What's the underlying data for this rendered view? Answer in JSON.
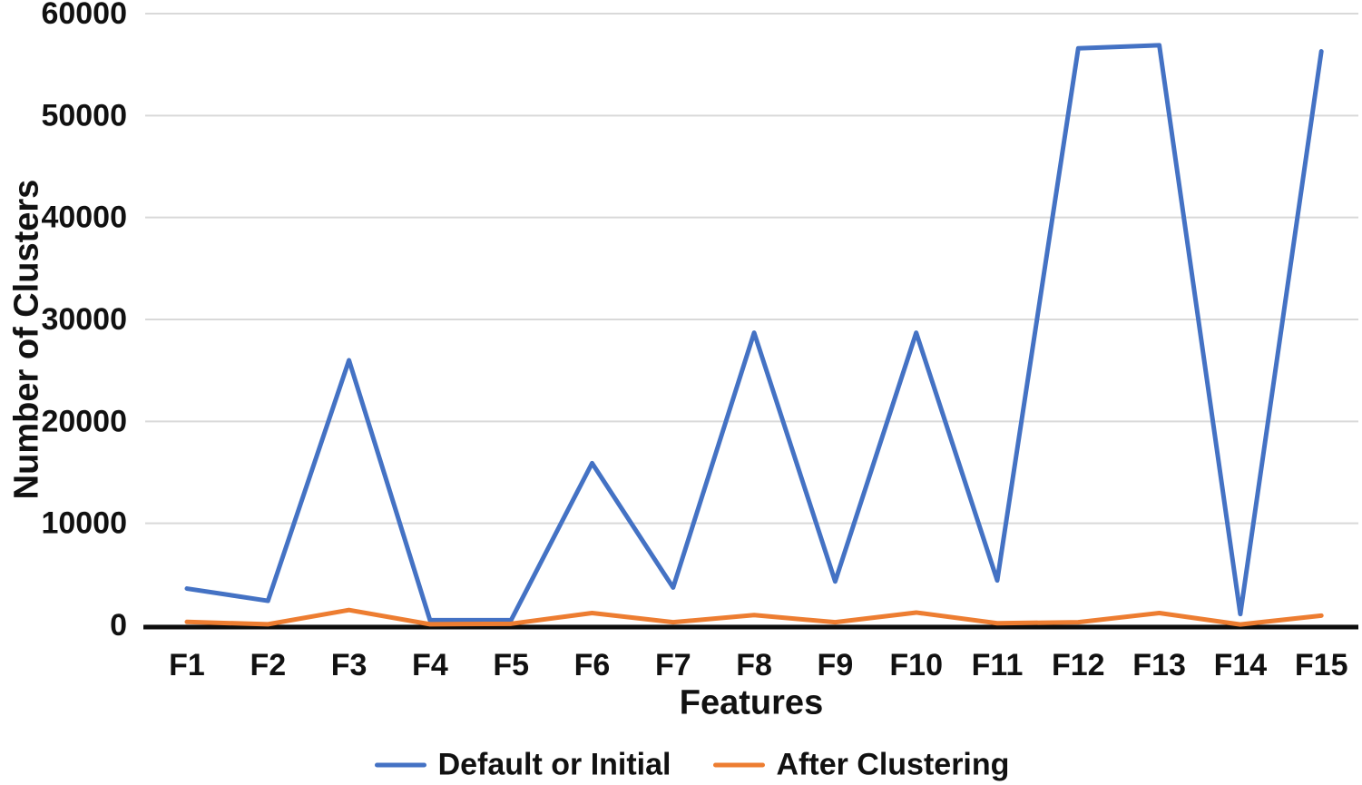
{
  "chart_data": {
    "type": "line",
    "title": "",
    "xlabel": "Features",
    "ylabel": "Number of Clusters",
    "categories": [
      "F1",
      "F2",
      "F3",
      "F4",
      "F5",
      "F6",
      "F7",
      "F8",
      "F9",
      "F10",
      "F11",
      "F12",
      "F13",
      "F14",
      "F15"
    ],
    "series": [
      {
        "name": "Default or Initial",
        "color": "#4472C4",
        "values": [
          3600,
          2400,
          26000,
          500,
          500,
          15900,
          3700,
          28700,
          4300,
          28700,
          4400,
          56600,
          56900,
          1100,
          56300
        ]
      },
      {
        "name": "After Clustering",
        "color": "#ED7D31",
        "values": [
          330,
          100,
          1500,
          100,
          150,
          1200,
          300,
          1000,
          300,
          1250,
          200,
          300,
          1200,
          80,
          950
        ]
      }
    ],
    "ylim": [
      0,
      60000
    ],
    "yticks": [
      0,
      10000,
      20000,
      30000,
      40000,
      50000,
      60000
    ],
    "grid": "horizontal",
    "legend_position": "bottom"
  },
  "colors": {
    "gridline": "#d9d9d9",
    "axis_line": "#0d0d0d",
    "text": "#111111",
    "background": "#ffffff"
  }
}
